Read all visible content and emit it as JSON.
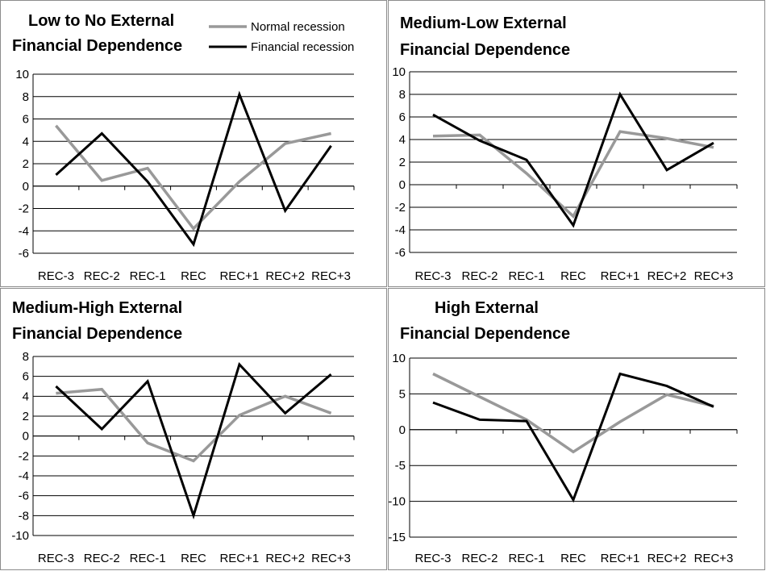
{
  "legend": {
    "normal_label": "Normal recession",
    "financial_label": "Financial recession",
    "normal_color": "#999999",
    "financial_color": "#000000"
  },
  "chart_data": [
    {
      "type": "line",
      "title_lines": [
        "Low to No External",
        "Financial Dependence"
      ],
      "categories": [
        "REC-3",
        "REC-2",
        "REC-1",
        "REC",
        "REC+1",
        "REC+2",
        "REC+3"
      ],
      "ylim": [
        -6,
        10
      ],
      "yticks": [
        "10",
        "8",
        "6",
        "4",
        "2",
        "0",
        "-2",
        "-4",
        "-6"
      ],
      "series": [
        {
          "name": "Normal recession",
          "color": "#999999",
          "values": [
            5.4,
            0.5,
            1.6,
            -3.8,
            0.4,
            3.8,
            4.7
          ]
        },
        {
          "name": "Financial recession",
          "color": "#000000",
          "values": [
            1.0,
            4.7,
            0.4,
            -5.2,
            8.2,
            -2.2,
            3.6
          ]
        }
      ]
    },
    {
      "type": "line",
      "title_lines": [
        "Medium-Low External",
        "Financial Dependence"
      ],
      "categories": [
        "REC-3",
        "REC-2",
        "REC-1",
        "REC",
        "REC+1",
        "REC+2",
        "REC+3"
      ],
      "ylim": [
        -6,
        10
      ],
      "yticks": [
        "10",
        "8",
        "6",
        "4",
        "2",
        "0",
        "-2",
        "-4",
        "-6"
      ],
      "series": [
        {
          "name": "Normal recession",
          "color": "#999999",
          "values": [
            4.3,
            4.4,
            1.0,
            -2.8,
            4.7,
            4.1,
            3.3
          ]
        },
        {
          "name": "Financial recession",
          "color": "#000000",
          "values": [
            6.2,
            3.9,
            2.2,
            -3.6,
            8.0,
            1.3,
            3.7
          ]
        }
      ]
    },
    {
      "type": "line",
      "title_lines": [
        "Medium-High External",
        "Financial Dependence"
      ],
      "categories": [
        "REC-3",
        "REC-2",
        "REC-1",
        "REC",
        "REC+1",
        "REC+2",
        "REC+3"
      ],
      "ylim": [
        -10,
        8
      ],
      "yticks": [
        "8",
        "6",
        "4",
        "2",
        "0",
        "-2",
        "-4",
        "-6",
        "-8",
        "-10"
      ],
      "series": [
        {
          "name": "Normal recession",
          "color": "#999999",
          "values": [
            4.3,
            4.7,
            -0.7,
            -2.5,
            2.1,
            4.0,
            2.3
          ]
        },
        {
          "name": "Financial recession",
          "color": "#000000",
          "values": [
            5.0,
            0.7,
            5.5,
            -8.0,
            7.2,
            2.3,
            6.2
          ]
        }
      ]
    },
    {
      "type": "line",
      "title_lines": [
        "High External",
        "Financial Dependence"
      ],
      "categories": [
        "REC-3",
        "REC-2",
        "REC-1",
        "REC",
        "REC+1",
        "REC+2",
        "REC+3"
      ],
      "ylim": [
        -15,
        10
      ],
      "yticks": [
        "10",
        "5",
        "0",
        "-5",
        "-10",
        "-15"
      ],
      "series": [
        {
          "name": "Normal recession",
          "color": "#999999",
          "values": [
            7.8,
            4.6,
            1.4,
            -3.1,
            1.1,
            4.9,
            3.3
          ]
        },
        {
          "name": "Financial recession",
          "color": "#000000",
          "values": [
            3.8,
            1.4,
            1.2,
            -9.8,
            7.8,
            6.1,
            3.2
          ]
        }
      ]
    }
  ]
}
